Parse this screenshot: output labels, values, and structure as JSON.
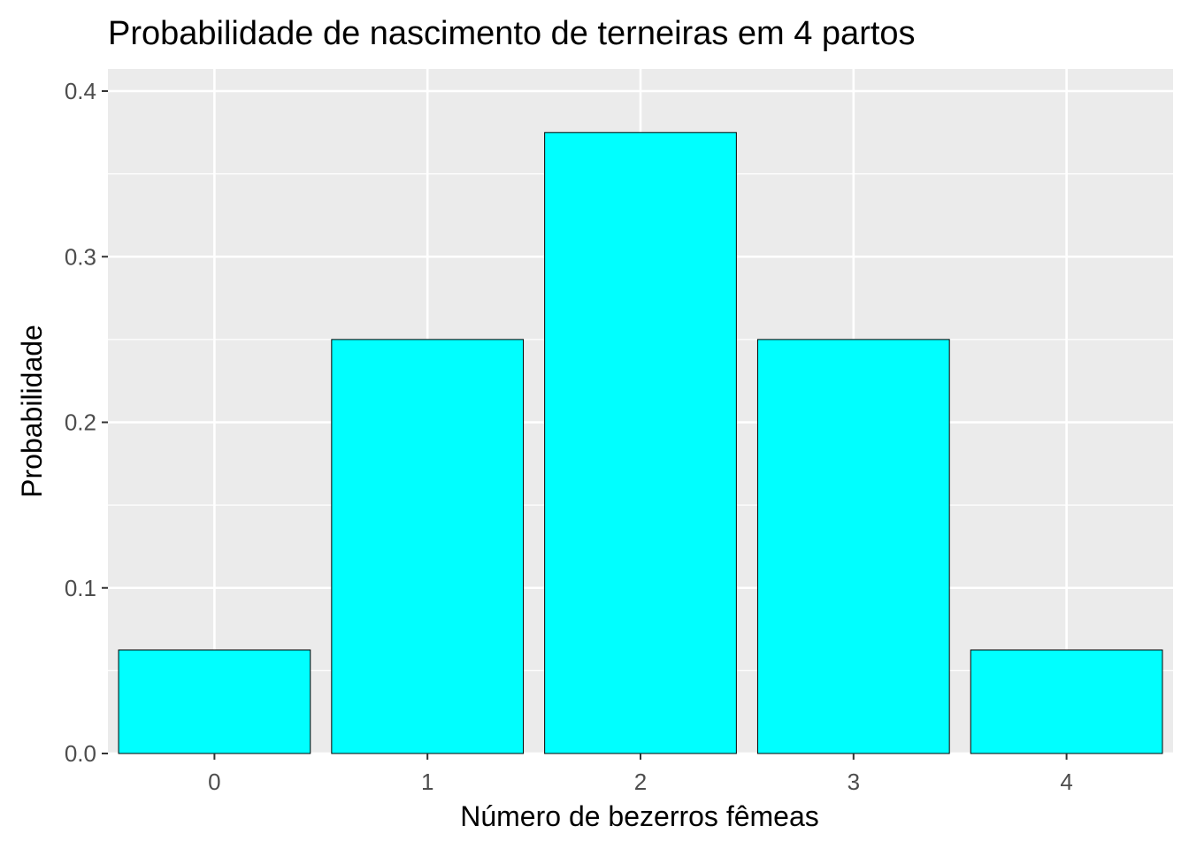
{
  "chart_data": {
    "type": "bar",
    "title": "Probabilidade de nascimento de terneiras em 4 partos",
    "xlabel": "Número de bezerros fêmeas",
    "ylabel": "Probabilidade",
    "categories": [
      "0",
      "1",
      "2",
      "3",
      "4"
    ],
    "values": [
      0.0625,
      0.25,
      0.375,
      0.25,
      0.0625
    ],
    "ylim": [
      0,
      0.4
    ],
    "yticks": [
      {
        "value": 0.0,
        "label": "0.0"
      },
      {
        "value": 0.1,
        "label": "0.1"
      },
      {
        "value": 0.2,
        "label": "0.2"
      },
      {
        "value": 0.3,
        "label": "0.3"
      },
      {
        "value": 0.4,
        "label": "0.4"
      }
    ],
    "grid": true,
    "legend": "none",
    "colors": {
      "bar_fill": "#00ffff",
      "bar_stroke": "#000000",
      "panel_background": "#ebebeb",
      "grid": "#ffffff"
    }
  }
}
